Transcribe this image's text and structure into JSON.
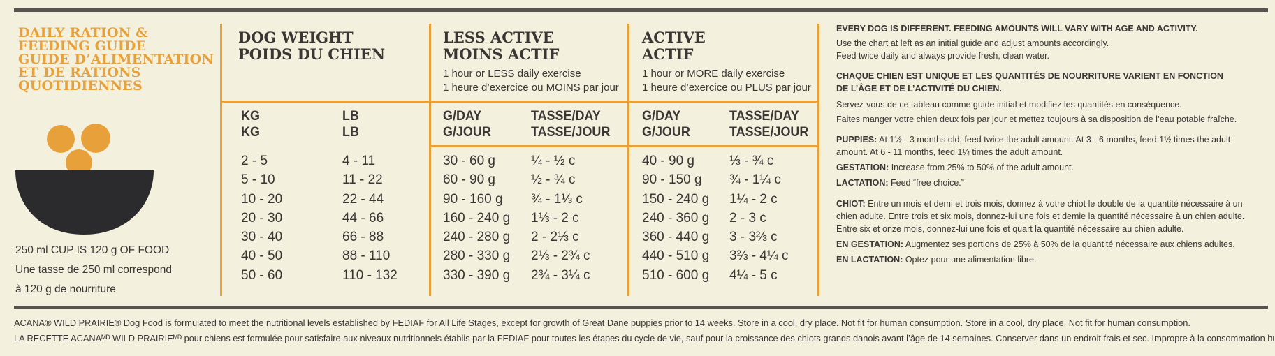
{
  "title_lines": [
    "DAILY RATION &",
    "FEEDING GUIDE",
    "GUIDE D’ALIMENTATION",
    "ET DE RATIONS",
    "QUOTIDIENNES"
  ],
  "cup_note": [
    "250 ml CUP IS 120 g OF FOOD",
    "Une tasse de 250 ml correspond",
    "à 120 g de nourriture"
  ],
  "colors": {
    "orange": "#e8a13a",
    "dark": "#2b2a2c",
    "bg": "#f4f0de"
  },
  "icon": "food-bowl-icon",
  "weight_header": [
    "DOG WEIGHT",
    "POIDS DU CHIEN"
  ],
  "less_header": [
    "LESS ACTIVE",
    "MOINS ACTIF"
  ],
  "less_sub": [
    "1 hour or LESS daily exercise",
    "1 heure d’exercice ou MOINS par jour"
  ],
  "active_header": [
    "ACTIVE",
    "ACTIF"
  ],
  "active_sub": [
    "1 hour or MORE daily exercise",
    "1 heure d’exercice ou PLUS par jour"
  ],
  "col_headers": {
    "kg": [
      "KG",
      "KG"
    ],
    "lb": [
      "LB",
      "LB"
    ],
    "less_g": [
      "G/DAY",
      "G/JOUR"
    ],
    "less_cup": [
      "TASSE/DAY",
      "TASSE/JOUR"
    ],
    "active_g": [
      "G/DAY",
      "G/JOUR"
    ],
    "active_cup": [
      "TASSE/DAY",
      "TASSE/JOUR"
    ]
  },
  "rows": {
    "kg": [
      "2 - 5",
      "5 - 10",
      "10 - 20",
      "20 - 30",
      "30 - 40",
      "40 - 50",
      "50 - 60"
    ],
    "lb": [
      "4 - 11",
      "11 - 22",
      "22 - 44",
      "44 - 66",
      "66 - 88",
      "88 - 110",
      "110 - 132"
    ],
    "less_g": [
      "30 - 60 g",
      "60 - 90 g",
      "90 - 160 g",
      "160 - 240 g",
      "240 - 280 g",
      "280 - 330 g",
      "330 - 390 g"
    ],
    "less_cup": [
      "¼ - ½ c",
      "½ - ¾ c",
      "¾ - 1⅓ c",
      "1⅓ - 2 c",
      "2 - 2⅓ c",
      "2⅓ - 2¾ c",
      "2¾ - 3¼ c"
    ],
    "active_g": [
      "40 - 90 g",
      "90 - 150 g",
      "150 - 240 g",
      "240 - 360 g",
      "360 - 440 g",
      "440 - 510 g",
      "510 - 600 g"
    ],
    "active_cup": [
      "⅓ - ¾ c",
      "¾ - 1¼ c",
      "1¼ - 2 c",
      "2 - 3 c",
      "3 - 3⅔ c",
      "3⅔ - 4¼ c",
      "4¼ - 5 c"
    ]
  },
  "right": {
    "en_heading": "EVERY DOG IS DIFFERENT. FEEDING AMOUNTS WILL VARY WITH AGE AND ACTIVITY.",
    "en_lines": [
      "Use the chart at left as an initial guide and adjust amounts accordingly.",
      "Feed twice daily and always provide fresh, clean water."
    ],
    "fr_heading": [
      "CHAQUE CHIEN EST UNIQUE ET LES QUANTITÉS DE NOURRITURE VARIENT EN FONCTION",
      "DE L’ÂGE ET DE L’ACTIVITÉ DU CHIEN."
    ],
    "fr_lines": [
      "Servez-vous de ce tableau comme guide initial et modifiez les quantités en conséquence.",
      "Faites manger votre chien deux fois par jour et mettez toujours à sa disposition de l’eau potable fraîche."
    ],
    "puppies_label": "PUPPIES:",
    "puppies_text": [
      " At 1½ - 3 months old, feed twice the adult amount. At 3 - 6 months, feed 1½ times the adult",
      "amount. At 6 - 11 months, feed 1¼ times the adult amount."
    ],
    "gestation_label": "GESTATION:",
    "gestation_text": " Increase from 25% to 50% of the adult amount.",
    "lactation_label": "LACTATION:",
    "lactation_text": " Feed “free choice.”",
    "chiot_label": "CHIOT:",
    "chiot_text": [
      " Entre un mois et demi et trois mois, donnez à votre chiot le double de la quantité nécessaire à un",
      "chien adulte. Entre trois et six mois, donnez-lui une fois et demie la quantité nécessaire à un chien adulte.",
      "Entre six et onze mois, donnez-lui une fois et quart la quantité nécessaire au chien adulte."
    ],
    "en_gestation_label": "EN GESTATION:",
    "en_gestation_text": " Augmentez ses portions de 25% à 50% de la quantité nécessaire aux chiens adultes.",
    "en_lactation_label": "EN LACTATION:",
    "en_lactation_text": " Optez pour une alimentation libre."
  },
  "footer": [
    "ACANA® WILD PRAIRIE® Dog Food is formulated to meet the nutritional levels established by FEDIAF for All Life Stages, except for growth of Great Dane puppies prior to 14 weeks.  Store in a cool, dry place. Not fit for human consumption. Store in a cool, dry place. Not fit for human consumption.",
    "LA RECETTE ACANAᴹᴰ WILD PRAIRIEᴹᴰ pour chiens est formulée pour satisfaire aux niveaux nutritionnels établis par la FEDIAF pour toutes les étapes du cycle de vie, sauf pour la croissance des chiots grands danois avant l’âge de 14 semaines. Conserver dans un endroit frais et sec. Impropre à la consommation humaine."
  ]
}
